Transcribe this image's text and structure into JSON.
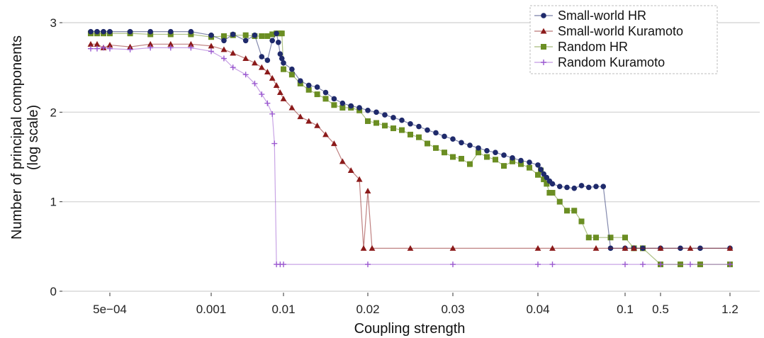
{
  "chart_data": {
    "type": "line",
    "xlabel": "Coupling strength",
    "ylabel_lines": [
      "Number of principal components",
      "(log scale)"
    ],
    "ylim": [
      0,
      3
    ],
    "yticks": [
      0,
      1,
      2,
      3
    ],
    "yticklabels": [
      "0",
      "1",
      "2",
      "3"
    ],
    "xscale": "piecewise",
    "xticks": [
      {
        "value": 0.0005,
        "label": "5e−04"
      },
      {
        "value": 0.001,
        "label": "0.001"
      },
      {
        "value": 0.01,
        "label": "0.01"
      },
      {
        "value": 0.02,
        "label": "0.02"
      },
      {
        "value": 0.03,
        "label": "0.03"
      },
      {
        "value": 0.04,
        "label": "0.04"
      },
      {
        "value": 0.1,
        "label": "0.1"
      },
      {
        "value": 0.5,
        "label": "0.5"
      },
      {
        "value": 1.2,
        "label": "1.2"
      }
    ],
    "grid": "horizontal",
    "legend_position": "top-right",
    "series": [
      {
        "name": "Small-world HR",
        "color": "#1f2a6b",
        "marker": "circle",
        "points": [
          [
            0.00035,
            2.9
          ],
          [
            0.0004,
            2.9
          ],
          [
            0.00045,
            2.9
          ],
          [
            0.0005,
            2.9
          ],
          [
            0.0006,
            2.9
          ],
          [
            0.0007,
            2.9
          ],
          [
            0.0008,
            2.9
          ],
          [
            0.0009,
            2.9
          ],
          [
            0.001,
            2.86
          ],
          [
            0.0015,
            2.8
          ],
          [
            0.002,
            2.87
          ],
          [
            0.003,
            2.8
          ],
          [
            0.004,
            2.86
          ],
          [
            0.005,
            2.62
          ],
          [
            0.006,
            2.58
          ],
          [
            0.007,
            2.8
          ],
          [
            0.008,
            2.88
          ],
          [
            0.0085,
            2.78
          ],
          [
            0.009,
            2.65
          ],
          [
            0.0095,
            2.6
          ],
          [
            0.01,
            2.55
          ],
          [
            0.011,
            2.48
          ],
          [
            0.012,
            2.35
          ],
          [
            0.013,
            2.3
          ],
          [
            0.014,
            2.28
          ],
          [
            0.015,
            2.22
          ],
          [
            0.016,
            2.15
          ],
          [
            0.017,
            2.1
          ],
          [
            0.018,
            2.07
          ],
          [
            0.019,
            2.05
          ],
          [
            0.02,
            2.02
          ],
          [
            0.021,
            2.0
          ],
          [
            0.022,
            1.97
          ],
          [
            0.023,
            1.94
          ],
          [
            0.024,
            1.91
          ],
          [
            0.025,
            1.87
          ],
          [
            0.026,
            1.84
          ],
          [
            0.027,
            1.8
          ],
          [
            0.028,
            1.77
          ],
          [
            0.029,
            1.73
          ],
          [
            0.03,
            1.7
          ],
          [
            0.031,
            1.66
          ],
          [
            0.032,
            1.63
          ],
          [
            0.033,
            1.6
          ],
          [
            0.034,
            1.57
          ],
          [
            0.035,
            1.55
          ],
          [
            0.036,
            1.52
          ],
          [
            0.037,
            1.49
          ],
          [
            0.038,
            1.46
          ],
          [
            0.039,
            1.44
          ],
          [
            0.04,
            1.41
          ],
          [
            0.042,
            1.36
          ],
          [
            0.044,
            1.31
          ],
          [
            0.046,
            1.27
          ],
          [
            0.048,
            1.23
          ],
          [
            0.05,
            1.2
          ],
          [
            0.055,
            1.17
          ],
          [
            0.06,
            1.16
          ],
          [
            0.065,
            1.15
          ],
          [
            0.07,
            1.18
          ],
          [
            0.075,
            1.16
          ],
          [
            0.08,
            1.17
          ],
          [
            0.085,
            1.17
          ],
          [
            0.09,
            0.48
          ],
          [
            0.1,
            0.48
          ],
          [
            0.2,
            0.48
          ],
          [
            0.3,
            0.48
          ],
          [
            0.5,
            0.48
          ],
          [
            0.7,
            0.48
          ],
          [
            0.9,
            0.48
          ],
          [
            1.2,
            0.48
          ]
        ]
      },
      {
        "name": "Small-world Kuramoto",
        "color": "#8b1a1a",
        "marker": "triangle",
        "points": [
          [
            0.00035,
            2.76
          ],
          [
            0.0004,
            2.76
          ],
          [
            0.00045,
            2.72
          ],
          [
            0.0005,
            2.75
          ],
          [
            0.0006,
            2.73
          ],
          [
            0.0007,
            2.76
          ],
          [
            0.0008,
            2.76
          ],
          [
            0.0009,
            2.76
          ],
          [
            0.001,
            2.74
          ],
          [
            0.0015,
            2.7
          ],
          [
            0.002,
            2.66
          ],
          [
            0.003,
            2.6
          ],
          [
            0.004,
            2.55
          ],
          [
            0.005,
            2.5
          ],
          [
            0.006,
            2.45
          ],
          [
            0.007,
            2.38
          ],
          [
            0.008,
            2.3
          ],
          [
            0.009,
            2.22
          ],
          [
            0.01,
            2.15
          ],
          [
            0.011,
            2.05
          ],
          [
            0.012,
            1.95
          ],
          [
            0.013,
            1.9
          ],
          [
            0.014,
            1.85
          ],
          [
            0.015,
            1.75
          ],
          [
            0.016,
            1.65
          ],
          [
            0.017,
            1.45
          ],
          [
            0.018,
            1.35
          ],
          [
            0.019,
            1.25
          ],
          [
            0.0195,
            0.48
          ],
          [
            0.02,
            1.12
          ],
          [
            0.0205,
            0.48
          ],
          [
            0.025,
            0.48
          ],
          [
            0.03,
            0.48
          ],
          [
            0.04,
            0.48
          ],
          [
            0.05,
            0.48
          ],
          [
            0.08,
            0.48
          ],
          [
            0.1,
            0.48
          ],
          [
            0.2,
            0.48
          ],
          [
            0.5,
            0.48
          ],
          [
            0.8,
            0.48
          ],
          [
            1.2,
            0.48
          ]
        ]
      },
      {
        "name": "Random HR",
        "color": "#6b8e23",
        "marker": "square",
        "points": [
          [
            0.00035,
            2.88
          ],
          [
            0.0004,
            2.88
          ],
          [
            0.00045,
            2.88
          ],
          [
            0.0005,
            2.88
          ],
          [
            0.0006,
            2.88
          ],
          [
            0.0007,
            2.87
          ],
          [
            0.0008,
            2.87
          ],
          [
            0.0009,
            2.87
          ],
          [
            0.001,
            2.84
          ],
          [
            0.0015,
            2.85
          ],
          [
            0.002,
            2.86
          ],
          [
            0.003,
            2.86
          ],
          [
            0.004,
            2.85
          ],
          [
            0.005,
            2.85
          ],
          [
            0.006,
            2.85
          ],
          [
            0.007,
            2.87
          ],
          [
            0.008,
            2.88
          ],
          [
            0.009,
            2.88
          ],
          [
            0.0095,
            2.88
          ],
          [
            0.01,
            2.48
          ],
          [
            0.011,
            2.42
          ],
          [
            0.012,
            2.32
          ],
          [
            0.013,
            2.25
          ],
          [
            0.014,
            2.2
          ],
          [
            0.015,
            2.15
          ],
          [
            0.016,
            2.08
          ],
          [
            0.017,
            2.05
          ],
          [
            0.018,
            2.05
          ],
          [
            0.019,
            2.02
          ],
          [
            0.02,
            1.9
          ],
          [
            0.021,
            1.88
          ],
          [
            0.022,
            1.85
          ],
          [
            0.023,
            1.82
          ],
          [
            0.024,
            1.8
          ],
          [
            0.025,
            1.75
          ],
          [
            0.026,
            1.72
          ],
          [
            0.027,
            1.65
          ],
          [
            0.028,
            1.6
          ],
          [
            0.029,
            1.55
          ],
          [
            0.03,
            1.5
          ],
          [
            0.031,
            1.48
          ],
          [
            0.032,
            1.42
          ],
          [
            0.033,
            1.55
          ],
          [
            0.034,
            1.5
          ],
          [
            0.035,
            1.47
          ],
          [
            0.036,
            1.4
          ],
          [
            0.037,
            1.45
          ],
          [
            0.038,
            1.42
          ],
          [
            0.039,
            1.38
          ],
          [
            0.04,
            1.3
          ],
          [
            0.042,
            1.35
          ],
          [
            0.044,
            1.25
          ],
          [
            0.046,
            1.2
          ],
          [
            0.048,
            1.1
          ],
          [
            0.05,
            1.1
          ],
          [
            0.055,
            1.0
          ],
          [
            0.06,
            0.9
          ],
          [
            0.065,
            0.9
          ],
          [
            0.07,
            0.78
          ],
          [
            0.075,
            0.6
          ],
          [
            0.08,
            0.6
          ],
          [
            0.09,
            0.6
          ],
          [
            0.1,
            0.6
          ],
          [
            0.2,
            0.48
          ],
          [
            0.3,
            0.48
          ],
          [
            0.5,
            0.3
          ],
          [
            0.7,
            0.3
          ],
          [
            0.9,
            0.3
          ],
          [
            1.2,
            0.3
          ]
        ]
      },
      {
        "name": "Random Kuramoto",
        "color": "#9b59d0",
        "marker": "plus",
        "points": [
          [
            0.00035,
            2.71
          ],
          [
            0.0004,
            2.71
          ],
          [
            0.00045,
            2.72
          ],
          [
            0.0005,
            2.71
          ],
          [
            0.0006,
            2.7
          ],
          [
            0.0007,
            2.72
          ],
          [
            0.0008,
            2.72
          ],
          [
            0.0009,
            2.72
          ],
          [
            0.001,
            2.68
          ],
          [
            0.0015,
            2.6
          ],
          [
            0.002,
            2.5
          ],
          [
            0.003,
            2.42
          ],
          [
            0.004,
            2.32
          ],
          [
            0.005,
            2.2
          ],
          [
            0.006,
            2.1
          ],
          [
            0.007,
            1.98
          ],
          [
            0.0075,
            1.65
          ],
          [
            0.008,
            0.3
          ],
          [
            0.009,
            0.3
          ],
          [
            0.01,
            0.3
          ],
          [
            0.02,
            0.3
          ],
          [
            0.03,
            0.3
          ],
          [
            0.04,
            0.3
          ],
          [
            0.05,
            0.3
          ],
          [
            0.1,
            0.3
          ],
          [
            0.3,
            0.3
          ],
          [
            0.5,
            0.3
          ],
          [
            0.8,
            0.3
          ],
          [
            1.2,
            0.3
          ]
        ]
      }
    ]
  }
}
